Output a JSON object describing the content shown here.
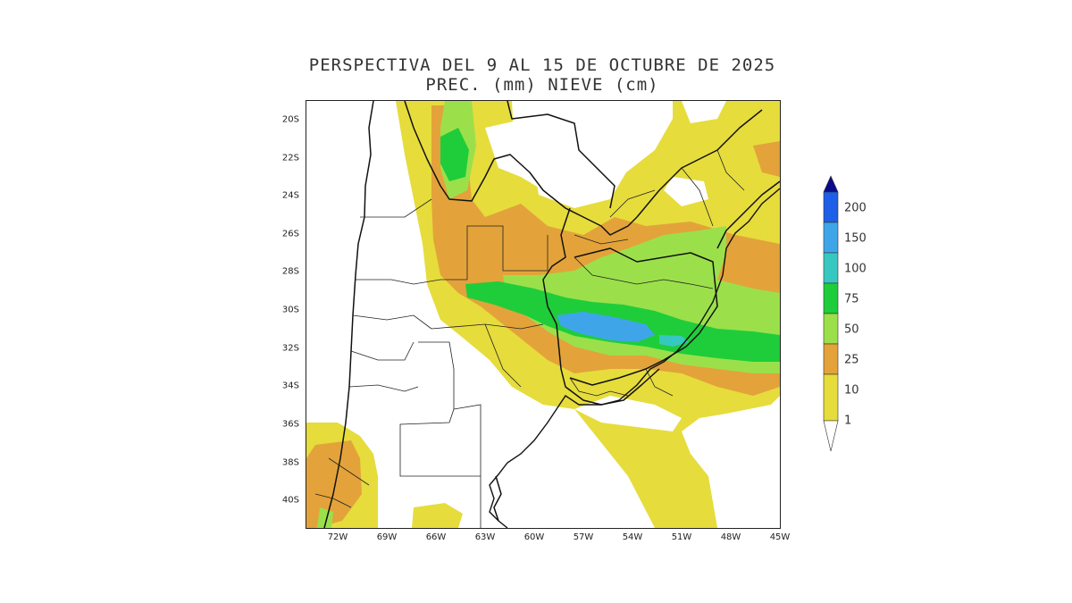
{
  "title": {
    "line1": "PERSPECTIVA DEL 9 AL 15 DE OCTUBRE DE 2025",
    "line2": "PREC. (mm) NIEVE (cm)"
  },
  "map": {
    "lat_ticks": [
      "20S",
      "22S",
      "24S",
      "26S",
      "28S",
      "30S",
      "32S",
      "34S",
      "36S",
      "38S",
      "40S"
    ],
    "lon_ticks": [
      "72W",
      "69W",
      "66W",
      "63W",
      "60W",
      "57W",
      "54W",
      "51W",
      "48W",
      "45W"
    ],
    "extent": {
      "lon_min": -74.5,
      "lon_max": -45,
      "lat_min": -41.5,
      "lat_max": -19.2
    }
  },
  "legend": {
    "labels": [
      "200",
      "150",
      "100",
      "75",
      "50",
      "25",
      "10",
      "1"
    ],
    "colors": {
      "c200": "#0b0b8c",
      "c150": "#1d5fe6",
      "c100": "#3ea6e8",
      "c75": "#36c8c0",
      "c50": "#1fcd3b",
      "c25": "#9be04a",
      "c10": "#e3a33a",
      "c1": "#e6dc3c"
    }
  }
}
